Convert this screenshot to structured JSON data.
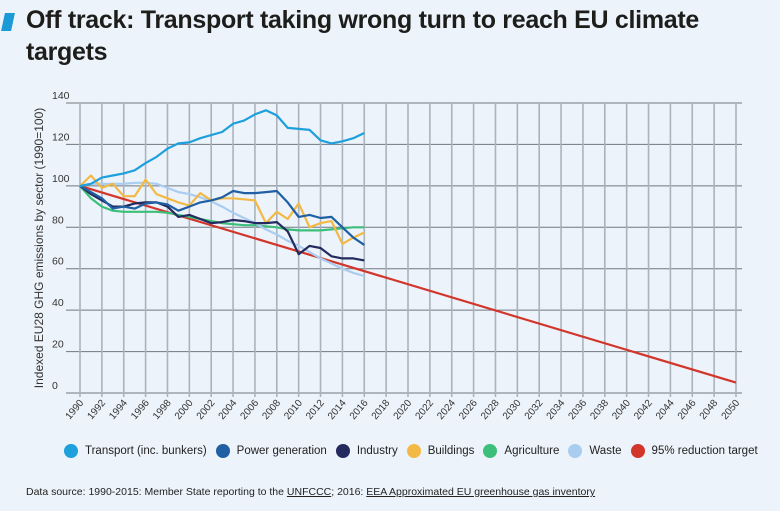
{
  "title": "Off track: Transport taking wrong turn to reach EU climate targets",
  "source": {
    "prefix": "Data source:  1990-2015: Member State reporting to the ",
    "link1": "UNFCCC",
    "middle": "; 2016: ",
    "link2": "EEA Approximated EU greenhouse gas inventory"
  },
  "chart_data": {
    "type": "line",
    "title": "Off track: Transport taking wrong turn to reach EU climate targets",
    "xlabel": "",
    "ylabel": "Indexed EU28 GHG emissions by sector (1990=100)",
    "xlim": [
      1990,
      2050
    ],
    "ylim": [
      0,
      140
    ],
    "grid": true,
    "legend_position": "bottom",
    "x_ticks": [
      "1990",
      "1992",
      "1994",
      "1996",
      "1998",
      "2000",
      "2002",
      "2004",
      "2006",
      "2008",
      "2010",
      "2012",
      "2014",
      "2016",
      "2018",
      "2020",
      "2022",
      "2024",
      "2026",
      "2028",
      "2030",
      "2032",
      "2034",
      "2036",
      "2038",
      "2040",
      "2042",
      "2044",
      "2046",
      "2048",
      "2050"
    ],
    "y_ticks": [
      "0",
      "20",
      "40",
      "60",
      "80",
      "100",
      "120",
      "140"
    ],
    "series": [
      {
        "name": "Transport (inc. bunkers)",
        "color": "#1ea0dc",
        "x": [
          1990,
          1991,
          1992,
          1993,
          1994,
          1995,
          1996,
          1997,
          1998,
          1999,
          2000,
          2001,
          2002,
          2003,
          2004,
          2005,
          2006,
          2007,
          2008,
          2009,
          2010,
          2011,
          2012,
          2013,
          2014,
          2015,
          2016
        ],
        "values": [
          100,
          101,
          104,
          105,
          106,
          107.5,
          111,
          114,
          118,
          120.5,
          121,
          123,
          124.5,
          126,
          130,
          131.5,
          134.5,
          136.5,
          134,
          128,
          127.5,
          127,
          122,
          120.5,
          121.5,
          123,
          125.5
        ]
      },
      {
        "name": "Power generation",
        "color": "#1f5fa3",
        "x": [
          1990,
          1991,
          1992,
          1993,
          1994,
          1995,
          1996,
          1997,
          1998,
          1999,
          2000,
          2001,
          2002,
          2003,
          2004,
          2005,
          2006,
          2007,
          2008,
          2009,
          2010,
          2011,
          2012,
          2013,
          2014,
          2015,
          2016
        ],
        "values": [
          100,
          97,
          94,
          89,
          90,
          89,
          91.5,
          92,
          91,
          88,
          90,
          92,
          93,
          94.5,
          97.5,
          96.5,
          96.5,
          97,
          97.5,
          92,
          85,
          86,
          84.5,
          85,
          80,
          75,
          71.5
        ]
      },
      {
        "name": "Industry",
        "color": "#222a5e",
        "x": [
          1990,
          1991,
          1992,
          1993,
          1994,
          1995,
          1996,
          1997,
          1998,
          1999,
          2000,
          2001,
          2002,
          2003,
          2004,
          2005,
          2006,
          2007,
          2008,
          2009,
          2010,
          2011,
          2012,
          2013,
          2014,
          2015,
          2016
        ],
        "values": [
          100,
          96,
          93,
          90,
          90,
          91.5,
          92,
          92,
          90,
          85,
          86,
          84,
          82,
          82.5,
          83.5,
          83,
          82,
          82,
          82.5,
          78,
          67,
          71,
          70,
          66,
          65,
          65,
          64
        ]
      },
      {
        "name": "Buildings",
        "color": "#f2b944",
        "x": [
          1990,
          1991,
          1992,
          1993,
          1994,
          1995,
          1996,
          1997,
          1998,
          1999,
          2000,
          2001,
          2002,
          2003,
          2004,
          2005,
          2006,
          2007,
          2008,
          2009,
          2010,
          2011,
          2012,
          2013,
          2014,
          2015,
          2016
        ],
        "values": [
          100,
          105,
          99,
          101,
          95,
          95,
          103,
          96,
          94,
          92,
          90.5,
          96.5,
          93,
          94,
          94,
          93.5,
          93,
          82,
          87.5,
          84,
          91.5,
          80,
          82,
          83,
          72,
          75,
          77.5
        ]
      },
      {
        "name": "Agriculture",
        "color": "#3cbf7a",
        "x": [
          1990,
          1991,
          1992,
          1993,
          1994,
          1995,
          1996,
          1997,
          1998,
          1999,
          2000,
          2001,
          2002,
          2003,
          2004,
          2005,
          2006,
          2007,
          2008,
          2009,
          2010,
          2011,
          2012,
          2013,
          2014,
          2015,
          2016
        ],
        "values": [
          100,
          94,
          90,
          88,
          87.5,
          87.5,
          87.5,
          87.5,
          87,
          86,
          85,
          84,
          83,
          82,
          81.5,
          81,
          81,
          80.5,
          80,
          79,
          78.5,
          78.5,
          78.5,
          79,
          79.5,
          80,
          80
        ]
      },
      {
        "name": "Waste",
        "color": "#a9cdf0",
        "x": [
          1990,
          1991,
          1992,
          1993,
          1994,
          1995,
          1996,
          1997,
          1998,
          1999,
          2000,
          2001,
          2002,
          2003,
          2004,
          2005,
          2006,
          2007,
          2008,
          2009,
          2010,
          2011,
          2012,
          2013,
          2014,
          2015,
          2016
        ],
        "values": [
          100,
          101,
          101,
          101,
          101,
          101.5,
          101.5,
          101,
          99,
          97,
          96,
          94.5,
          92.5,
          90,
          87,
          84.5,
          82,
          79,
          76.5,
          73.5,
          71,
          68,
          65,
          62.5,
          60,
          58,
          56.5
        ]
      },
      {
        "name": "95% reduction target",
        "color": "#d2362b",
        "x": [
          1990,
          2050
        ],
        "values": [
          100,
          5
        ]
      }
    ]
  }
}
